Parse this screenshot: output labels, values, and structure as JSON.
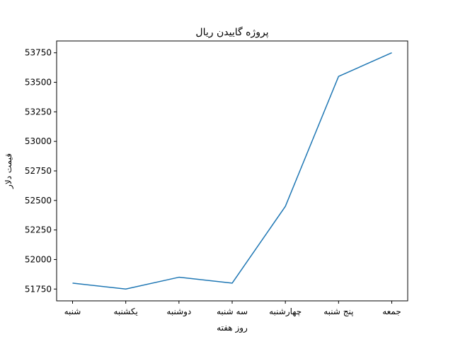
{
  "chart_data": {
    "type": "line",
    "title": "پروژه گاییدن ریال",
    "xlabel": "روز هفته",
    "ylabel": "قیمت دلار",
    "categories": [
      "شنبه",
      "یکشنبه",
      "دوشنبه",
      "سه شنبه",
      "چهارشنبه",
      "پنج شنبه",
      "جمعه"
    ],
    "series": [
      {
        "values": [
          51800,
          51750,
          51850,
          51800,
          52450,
          53550,
          53750
        ],
        "color": "#1f77b4"
      }
    ],
    "ylim": [
      51650,
      53850
    ],
    "yticks": [
      51750,
      52000,
      52250,
      52500,
      52750,
      53000,
      53250,
      53500,
      53750
    ],
    "grid": false,
    "legend": "none"
  }
}
